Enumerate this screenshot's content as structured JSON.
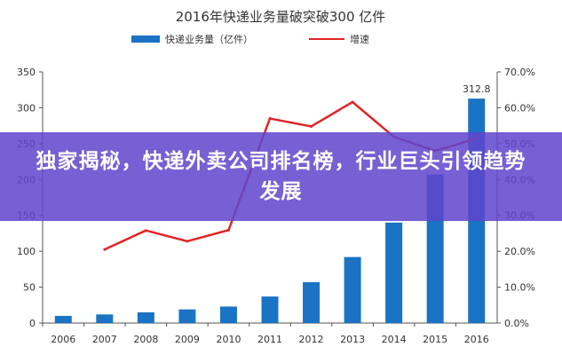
{
  "chart_data": {
    "type": "bar",
    "title": "2016年快递业务量破突破300  亿件",
    "categories": [
      "2006",
      "2007",
      "2008",
      "2009",
      "2010",
      "2011",
      "2012",
      "2013",
      "2014",
      "2015",
      "2016"
    ],
    "series": [
      {
        "name": "快递业务量（亿件）",
        "type": "bar",
        "axis": "left",
        "color": "#1a73c4",
        "values": [
          10,
          12,
          15,
          19,
          23,
          37,
          57,
          92,
          140,
          207,
          312.8
        ]
      },
      {
        "name": "增速",
        "type": "line",
        "axis": "right",
        "color": "#e02424",
        "values": [
          null,
          20.5,
          25.8,
          22.8,
          25.9,
          57.0,
          54.8,
          61.6,
          51.9,
          48.0,
          51.4
        ]
      }
    ],
    "data_labels": [
      {
        "category": "2016",
        "text": "312.8"
      }
    ],
    "y_left": {
      "min": 0,
      "max": 350,
      "ticks": [
        "0",
        "50",
        "100",
        "150",
        "200",
        "250",
        "300",
        "350"
      ]
    },
    "y_right": {
      "min": 0,
      "max": 70,
      "ticks": [
        "0.0%",
        "10.0%",
        "20.0%",
        "30.0%",
        "40.0%",
        "50.0%",
        "60.0%",
        "70.0%"
      ]
    },
    "grid": false,
    "legend_position": "top-center"
  },
  "banner": {
    "text": "独家揭秘，快递外卖公司排名榜，行业巨头引领趋势发展"
  }
}
